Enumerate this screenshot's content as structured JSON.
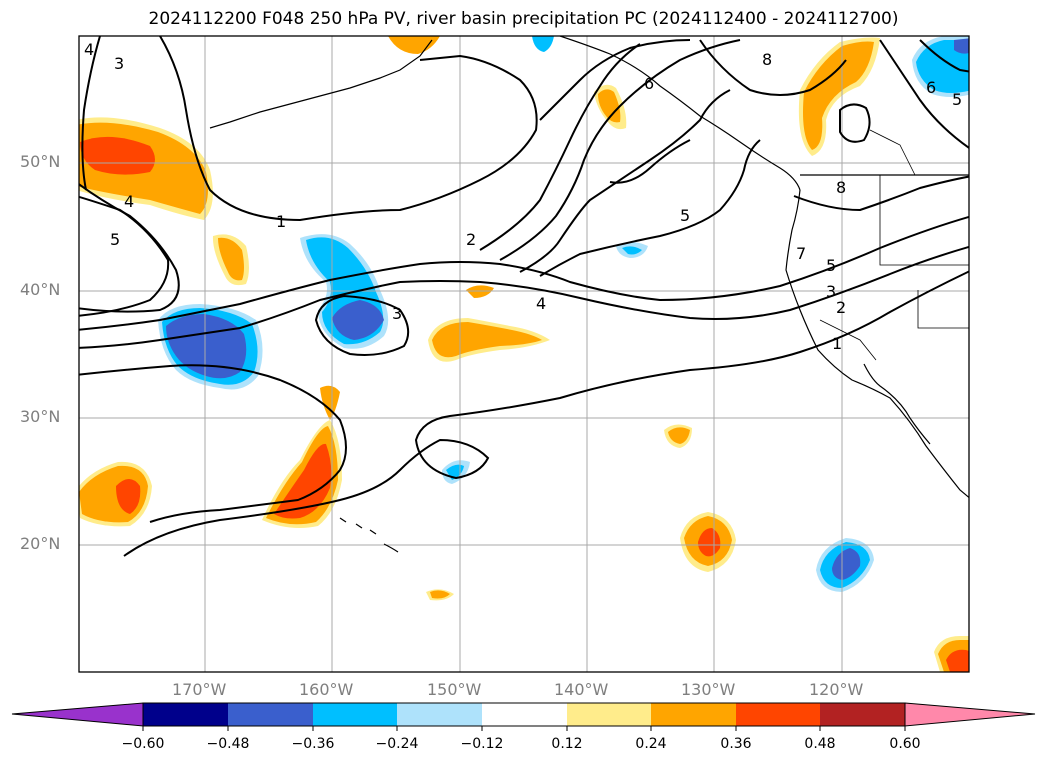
{
  "title": "2024112200 F048 250 hPa PV, river basin precipitation PC (2024112400 - 2024112700)",
  "map": {
    "lat_labels": [
      "50°N",
      "40°N",
      "30°N",
      "20°N"
    ],
    "lon_labels": [
      "170°W",
      "160°W",
      "150°W",
      "140°W",
      "130°W",
      "120°W"
    ],
    "contour_labels": [
      "4",
      "3",
      "1",
      "2",
      "4",
      "5",
      "3",
      "5",
      "6",
      "8",
      "6",
      "8",
      "5",
      "7",
      "5",
      "3",
      "2",
      "1",
      "4",
      "5"
    ],
    "gridline_color": "#a9a9a9",
    "contour_color": "#000000"
  },
  "colorbar": {
    "tick_labels": [
      "−0.60",
      "−0.48",
      "−0.36",
      "−0.24",
      "−0.12",
      "0.12",
      "0.24",
      "0.36",
      "0.48",
      "0.60"
    ],
    "colors": [
      "#9932cc",
      "#00008b",
      "#3a5fcd",
      "#00bfff",
      "#aee2fb",
      "#ffffff",
      "#ffec8b",
      "#ffa500",
      "#ff4500",
      "#b22222",
      "#ff88aa"
    ]
  }
}
